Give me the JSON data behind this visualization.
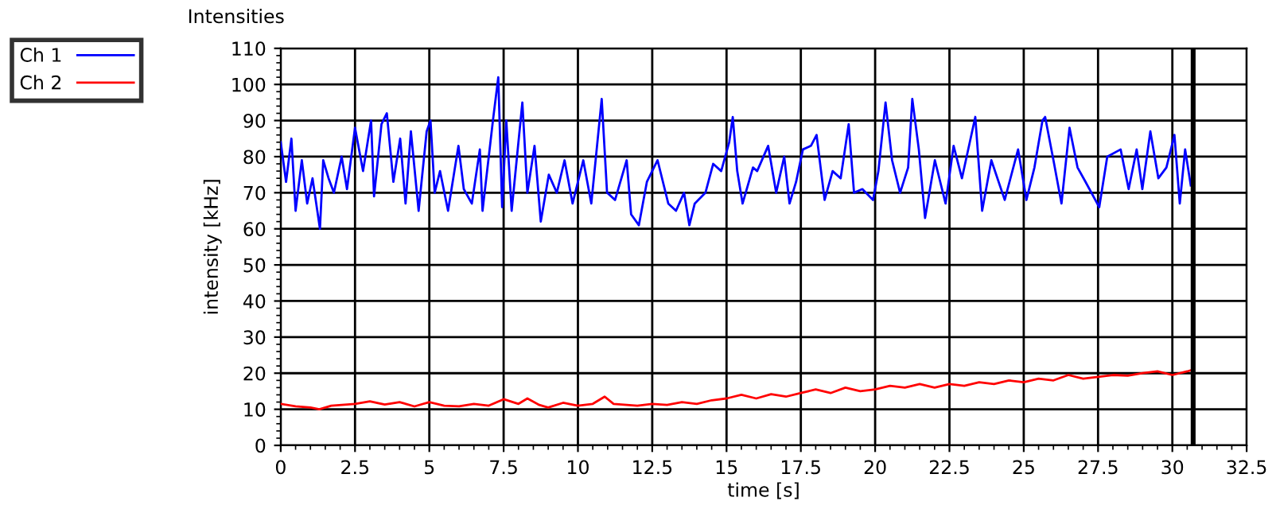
{
  "chart_data": {
    "type": "line",
    "title": "Intensities",
    "xlabel": "time [s]",
    "ylabel": "intensity [kHz]",
    "xlim": [
      0,
      32.5
    ],
    "ylim": [
      0,
      110
    ],
    "xticks": [
      0,
      {
        "value": 2.5,
        "label": "2.5"
      },
      5,
      {
        "value": 7.5,
        "label": "7.5"
      },
      10,
      {
        "value": 12.5,
        "label": "12.5"
      },
      15,
      {
        "value": 17.5,
        "label": "17.5"
      },
      20,
      {
        "value": 22.5,
        "label": "22.5"
      },
      25,
      {
        "value": 27.5,
        "label": "27.5"
      },
      30,
      {
        "value": 32.5,
        "label": "32.5"
      }
    ],
    "yticks": [
      0,
      10,
      20,
      30,
      40,
      50,
      60,
      70,
      80,
      90,
      100,
      110
    ],
    "grid": true,
    "legend": "top left",
    "line_style": "solid",
    "ref_lines": [
      {
        "axis": "x",
        "value": 30.7,
        "color": "#000000"
      }
    ],
    "series": [
      {
        "name": "Ch 1",
        "color": "#0000ff",
        "x": [
          0,
          0.18,
          0.36,
          0.5,
          0.71,
          0.89,
          1.07,
          1.32,
          1.43,
          1.61,
          1.79,
          2.05,
          2.23,
          2.5,
          2.77,
          3.04,
          3.14,
          3.39,
          3.57,
          3.79,
          4.02,
          4.2,
          4.38,
          4.64,
          4.91,
          5.04,
          5.18,
          5.36,
          5.63,
          5.98,
          6.16,
          6.43,
          6.7,
          6.79,
          7.14,
          7.32,
          7.45,
          7.59,
          7.77,
          8.13,
          8.3,
          8.54,
          8.75,
          9.02,
          9.29,
          9.55,
          9.82,
          10.18,
          10.45,
          10.8,
          10.98,
          11.25,
          11.64,
          11.79,
          12.05,
          12.32,
          12.68,
          13.04,
          13.3,
          13.57,
          13.75,
          13.93,
          14.29,
          14.55,
          14.82,
          15.09,
          15.21,
          15.36,
          15.54,
          15.89,
          16.03,
          16.4,
          16.67,
          16.94,
          17.12,
          17.34,
          17.57,
          17.84,
          18.03,
          18.3,
          18.57,
          18.84,
          19.11,
          19.29,
          19.57,
          19.93,
          20.11,
          20.35,
          20.57,
          20.84,
          21.11,
          21.25,
          21.47,
          21.68,
          22.01,
          22.37,
          22.64,
          22.92,
          23.37,
          23.6,
          23.91,
          24.36,
          24.81,
          25.09,
          25.36,
          25.63,
          25.72,
          26.0,
          26.27,
          26.54,
          26.81,
          27.08,
          27.54,
          27.81,
          28.26,
          28.53,
          28.8,
          28.99,
          29.26,
          29.53,
          29.8,
          30.07,
          30.25,
          30.43,
          30.62
        ],
        "values": [
          84,
          73,
          85,
          65,
          79,
          67,
          74,
          60,
          79,
          74,
          70,
          80,
          71,
          88,
          76,
          90,
          69,
          89,
          92,
          73,
          85,
          67,
          87,
          65,
          87,
          90,
          70,
          76,
          65,
          83,
          71,
          67,
          82,
          65,
          90,
          102,
          66,
          90,
          65,
          95,
          70,
          83,
          62,
          75,
          70,
          79,
          67,
          79,
          67,
          96,
          70,
          68,
          79,
          64,
          61,
          73,
          79,
          67,
          65,
          70,
          61,
          67,
          70,
          78,
          76,
          84,
          91,
          76,
          67,
          77,
          76,
          83,
          70,
          80,
          67,
          73,
          82,
          83,
          86,
          68,
          76,
          74,
          89,
          70,
          71,
          68,
          76,
          95,
          79,
          70,
          77,
          96,
          82,
          63,
          79,
          67,
          83,
          74,
          91,
          65,
          79,
          68,
          82,
          68,
          77,
          90,
          91,
          79,
          67,
          88,
          77,
          73,
          66,
          80,
          82,
          71,
          82,
          71,
          87,
          74,
          77,
          86,
          67,
          82,
          72
        ]
      },
      {
        "name": "Ch 2",
        "color": "#ff0000",
        "x": [
          0,
          0.5,
          1,
          1.3,
          1.7,
          2.5,
          3,
          3.5,
          4,
          4.5,
          5,
          5.5,
          6,
          6.5,
          7,
          7.5,
          8,
          8.3,
          8.7,
          9,
          9.5,
          10,
          10.5,
          10.9,
          11.2,
          12,
          12.5,
          13,
          13.5,
          14,
          14.5,
          15,
          15.5,
          16,
          16.5,
          17,
          17.5,
          18,
          18.5,
          19,
          19.5,
          20,
          20.5,
          21,
          21.5,
          22,
          22.5,
          23,
          23.5,
          24,
          24.5,
          25,
          25.5,
          26,
          26.5,
          27,
          27.5,
          28,
          28.5,
          29,
          29.5,
          30,
          30.5,
          30.7
        ],
        "values": [
          11.5,
          10.8,
          10.5,
          10,
          11,
          11.5,
          12.2,
          11.3,
          12,
          10.8,
          12,
          11,
          10.8,
          11.5,
          11,
          12.8,
          11.5,
          13,
          11.2,
          10.5,
          11.8,
          11,
          11.5,
          13.5,
          11.5,
          11,
          11.5,
          11.2,
          12,
          11.5,
          12.5,
          13,
          14,
          13,
          14.2,
          13.5,
          14.5,
          15.5,
          14.5,
          16,
          15,
          15.5,
          16.5,
          16,
          17,
          16,
          17,
          16.5,
          17.5,
          17,
          18,
          17.5,
          18.5,
          18,
          19.5,
          18.5,
          19,
          19.5,
          19.3,
          20,
          20.5,
          19.5,
          20.5,
          21
        ]
      }
    ]
  }
}
